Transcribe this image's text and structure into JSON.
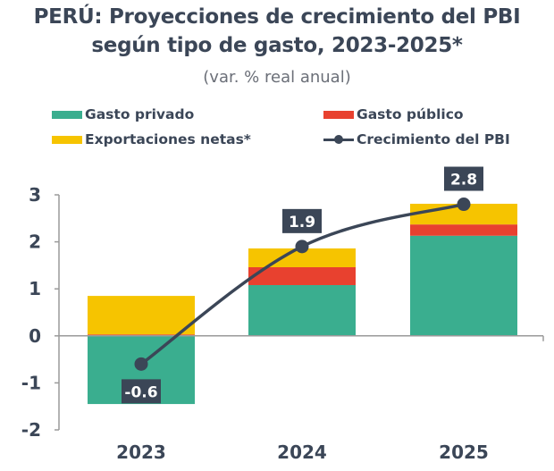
{
  "chart_data": {
    "type": "bar",
    "stacked": true,
    "title": "PERÚ: Proyecciones de crecimiento del PBI según tipo de gasto, 2023-2025*",
    "title_lines": [
      "PERÚ: Proyecciones de crecimiento del PBI",
      "según tipo de gasto, 2023-2025*"
    ],
    "subtitle": "(var. % real anual)",
    "xlabel": "",
    "ylabel": "",
    "categories": [
      "2023",
      "2024",
      "2025"
    ],
    "ylim": [
      -2,
      3
    ],
    "yticks": [
      3,
      2,
      1,
      0,
      -1,
      -2
    ],
    "ytick_labels": [
      "3",
      "2",
      "1",
      "0",
      "-1",
      "-2"
    ],
    "grid": false,
    "legend_position": "top",
    "series": [
      {
        "name": "Gasto privado",
        "kind": "bar",
        "color": "#3aae8f",
        "values": [
          -1.45,
          1.08,
          2.13
        ]
      },
      {
        "name": "Gasto público",
        "kind": "bar",
        "color": "#e8412f",
        "values": [
          0.03,
          0.38,
          0.24
        ]
      },
      {
        "name": "Exportaciones netas*",
        "kind": "bar",
        "color": "#f6c400",
        "values": [
          0.82,
          0.4,
          0.44
        ]
      },
      {
        "name": "Crecimiento del PBI",
        "kind": "line",
        "color": "#3b4657",
        "values": [
          -0.6,
          1.9,
          2.8
        ],
        "labels": [
          "-0.6",
          "1.9",
          "2.8"
        ]
      }
    ]
  },
  "legend": [
    {
      "label": "Gasto privado",
      "color": "#3aae8f",
      "kind": "bar"
    },
    {
      "label": "Gasto público",
      "color": "#e8412f",
      "kind": "bar"
    },
    {
      "label": "Exportaciones netas*",
      "color": "#f6c400",
      "kind": "bar"
    },
    {
      "label": "Crecimiento del PBI",
      "color": "#3b4657",
      "kind": "line"
    }
  ]
}
